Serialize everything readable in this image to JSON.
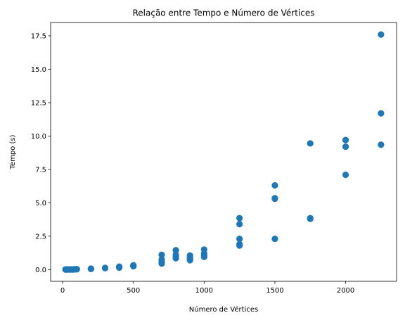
{
  "chart_data": {
    "type": "scatter",
    "title": "Relação entre Tempo e Número de Vértices",
    "xlabel": "Número de Vértices",
    "ylabel": "Tempo (s)",
    "xlim": [
      -85,
      2360
    ],
    "ylim": [
      -0.88,
      18.5
    ],
    "xticks": [
      0,
      500,
      1000,
      1500,
      2000
    ],
    "yticks": [
      0.0,
      2.5,
      5.0,
      7.5,
      10.0,
      12.5,
      15.0,
      17.5
    ],
    "ytick_labels": [
      "0.0",
      "2.5",
      "5.0",
      "7.5",
      "10.0",
      "12.5",
      "15.0",
      "17.5"
    ],
    "xtick_labels": [
      "0",
      "500",
      "1000",
      "1500",
      "2000"
    ],
    "grid": false,
    "marker_color": "#1f77b4",
    "series": [
      {
        "x": [
          20,
          25,
          30,
          40,
          50,
          60,
          70,
          75,
          80,
          90,
          100,
          100,
          200,
          200,
          200,
          300,
          300,
          400,
          400,
          400,
          500,
          500,
          500,
          700,
          700,
          700,
          700,
          800,
          800,
          800,
          800,
          900,
          900,
          900,
          900,
          1000,
          1000,
          1000,
          1000,
          1250,
          1250,
          1250,
          1250,
          1250,
          1500,
          1500,
          1500,
          1500,
          1750,
          1750,
          1750,
          2000,
          2000,
          2000,
          2250,
          2250,
          2250
        ],
        "y": [
          0.01,
          0.01,
          0.01,
          0.01,
          0.01,
          0.01,
          0.01,
          0.01,
          0.02,
          0.02,
          0.02,
          0.03,
          0.05,
          0.06,
          0.07,
          0.1,
          0.13,
          0.15,
          0.18,
          0.22,
          0.25,
          0.28,
          0.32,
          0.45,
          0.6,
          0.75,
          1.1,
          0.85,
          0.95,
          1.1,
          1.45,
          0.7,
          0.8,
          0.9,
          1.05,
          0.95,
          1.05,
          1.2,
          1.5,
          1.8,
          1.9,
          2.3,
          3.4,
          3.85,
          2.3,
          5.3,
          5.35,
          6.3,
          3.8,
          3.85,
          9.45,
          7.1,
          9.2,
          9.7,
          9.35,
          11.7,
          17.6
        ]
      }
    ]
  }
}
